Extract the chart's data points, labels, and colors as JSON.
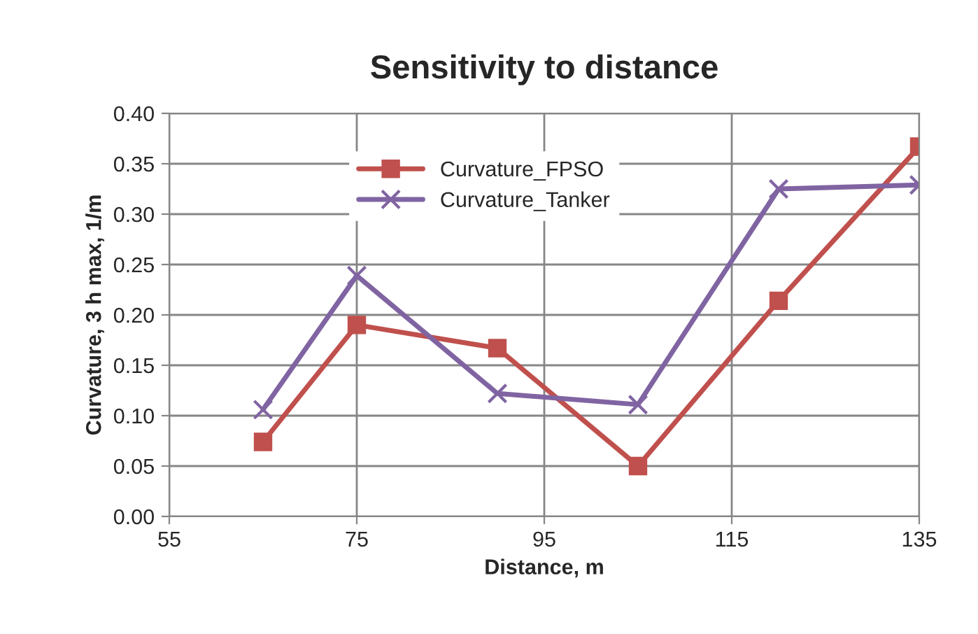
{
  "chart_data": {
    "type": "line",
    "title": "Sensitivity to distance",
    "xlabel": "Distance, m",
    "ylabel": "Curvature, 3 h max, 1/m",
    "x": [
      65,
      75,
      90,
      105,
      120,
      135
    ],
    "series": [
      {
        "name": "Curvature_FPSO",
        "color": "#c0504d",
        "marker": "square",
        "values": [
          0.074,
          0.19,
          0.167,
          0.05,
          0.214,
          0.367
        ]
      },
      {
        "name": "Curvature_Tanker",
        "color": "#8064a2",
        "marker": "cross",
        "values": [
          0.106,
          0.239,
          0.122,
          0.111,
          0.325,
          0.329
        ]
      }
    ],
    "xlim": [
      55,
      135
    ],
    "xticks": [
      55,
      75,
      95,
      115,
      135
    ],
    "ylim": [
      0,
      0.4
    ],
    "yticks": [
      {
        "value": 0,
        "label": "0.00"
      },
      {
        "value": 0.05,
        "label": "0.05"
      },
      {
        "value": 0.1,
        "label": "0.10"
      },
      {
        "value": 0.15,
        "label": "0.15"
      },
      {
        "value": 0.2,
        "label": "0.20"
      },
      {
        "value": 0.25,
        "label": "0.25"
      },
      {
        "value": 0.3,
        "label": "0.30"
      },
      {
        "value": 0.35,
        "label": "0.35"
      },
      {
        "value": 0.4,
        "label": "0.40"
      }
    ],
    "grid": true,
    "legend": "top",
    "line_style": "solid"
  }
}
